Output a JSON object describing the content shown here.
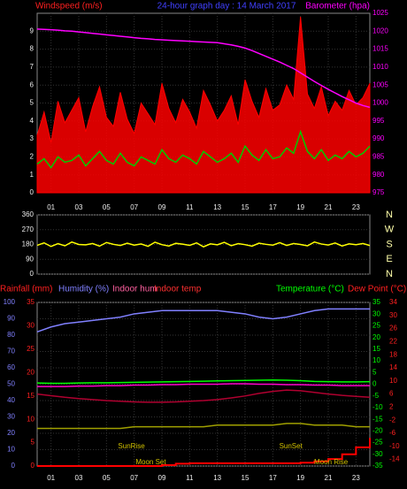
{
  "chart_data": [
    {
      "type": "line",
      "title": "24-hour graph day : 14 March 2017",
      "ylabel": "Windspeed (m/s)",
      "y2label": "Barometer (hpa)",
      "xlim": [
        0,
        24
      ],
      "xticks": [
        {
          "value": 1,
          "label": "01"
        },
        {
          "value": 3,
          "label": "03"
        },
        {
          "value": 5,
          "label": "05"
        },
        {
          "value": 7,
          "label": "07"
        },
        {
          "value": 9,
          "label": "09"
        },
        11,
        13,
        15,
        17,
        19,
        21,
        23
      ],
      "ylim": [
        0,
        10
      ],
      "yticks": [
        0,
        1,
        2,
        3,
        4,
        5,
        6,
        7,
        8,
        9
      ],
      "y2lim": [
        975,
        1025
      ],
      "y2ticks": [
        975,
        980,
        985,
        990,
        995,
        1000,
        1005,
        1010,
        1015,
        1020,
        1025
      ],
      "grid": true,
      "x": [
        0,
        0.5,
        1,
        1.5,
        2,
        2.5,
        3,
        3.5,
        4,
        4.5,
        5,
        5.5,
        6,
        6.5,
        7,
        7.5,
        8,
        8.5,
        9,
        9.5,
        10,
        10.5,
        11,
        11.5,
        12,
        12.5,
        13,
        13.5,
        14,
        14.5,
        15,
        15.5,
        16,
        16.5,
        17,
        17.5,
        18,
        18.5,
        19,
        19.5,
        20,
        20.5,
        21,
        21.5,
        22,
        22.5,
        23,
        23.5,
        24
      ],
      "series": [
        {
          "color": "#ff0000",
          "style": "area",
          "axis": "y",
          "values": [
            3.2,
            4.5,
            2.8,
            5.1,
            3.9,
            4.6,
            5.3,
            3.4,
            4.8,
            5.9,
            4.2,
            3.7,
            5.6,
            4.1,
            3.3,
            5.0,
            4.4,
            3.8,
            6.1,
            4.7,
            3.9,
            5.2,
            4.5,
            3.6,
            5.7,
            4.9,
            4.0,
            4.6,
            5.4,
            3.8,
            6.3,
            5.1,
            4.2,
            5.8,
            4.6,
            4.9,
            6.0,
            5.2,
            9.8,
            5.5,
            4.7,
            5.9,
            4.3,
            5.1,
            4.6,
            5.7,
            4.9,
            5.3,
            6.1
          ]
        },
        {
          "color": "#00cc00",
          "style": "line",
          "axis": "y",
          "values": [
            1.6,
            1.9,
            1.4,
            2.0,
            1.7,
            1.8,
            2.1,
            1.5,
            1.9,
            2.3,
            1.8,
            1.6,
            2.2,
            1.7,
            1.5,
            2.0,
            1.8,
            1.6,
            2.4,
            1.9,
            1.7,
            2.1,
            1.9,
            1.6,
            2.3,
            2.0,
            1.7,
            1.9,
            2.2,
            1.7,
            2.6,
            2.1,
            1.8,
            2.4,
            1.9,
            2.0,
            2.5,
            2.2,
            3.4,
            2.3,
            1.9,
            2.4,
            1.8,
            2.1,
            1.9,
            2.3,
            2.0,
            2.2,
            2.6
          ]
        },
        {
          "color": "#ff00ff",
          "style": "line",
          "axis": "y2",
          "values": [
            1020.6,
            1020.5,
            1020.4,
            1020.3,
            1020.1,
            1020.0,
            1019.8,
            1019.6,
            1019.4,
            1019.2,
            1019.0,
            1018.8,
            1018.6,
            1018.4,
            1018.2,
            1018.0,
            1017.9,
            1017.7,
            1017.6,
            1017.5,
            1017.4,
            1017.3,
            1017.2,
            1017.1,
            1017.0,
            1016.9,
            1016.8,
            1016.5,
            1016.2,
            1015.8,
            1015.3,
            1014.6,
            1013.8,
            1013.0,
            1012.2,
            1011.4,
            1010.5,
            1009.6,
            1008.4,
            1007.2,
            1006.0,
            1004.9,
            1003.8,
            1002.8,
            1001.8,
            1000.9,
            1000.0,
            999.3,
            998.8
          ]
        }
      ]
    },
    {
      "type": "line",
      "xlim": [
        0,
        24
      ],
      "ylim": [
        0,
        360
      ],
      "yticks": [
        0,
        90,
        180,
        270,
        360
      ],
      "grid": true,
      "compass": [
        "N",
        "W",
        "S",
        "E",
        "N"
      ],
      "x": [
        0,
        0.5,
        1,
        1.5,
        2,
        2.5,
        3,
        3.5,
        4,
        4.5,
        5,
        5.5,
        6,
        6.5,
        7,
        7.5,
        8,
        8.5,
        9,
        9.5,
        10,
        10.5,
        11,
        11.5,
        12,
        12.5,
        13,
        13.5,
        14,
        14.5,
        15,
        15.5,
        16,
        16.5,
        17,
        17.5,
        18,
        18.5,
        19,
        19.5,
        20,
        20.5,
        21,
        21.5,
        22,
        22.5,
        23,
        23.5,
        24
      ],
      "series": [
        {
          "color": "#ffff00",
          "style": "line",
          "axis": "y",
          "values": [
            175,
            190,
            168,
            185,
            172,
            195,
            180,
            178,
            186,
            170,
            192,
            181,
            174,
            188,
            176,
            183,
            169,
            194,
            179,
            171,
            187,
            182,
            175,
            190,
            166,
            184,
            178,
            193,
            173,
            185,
            179,
            170,
            188,
            181,
            176,
            191,
            174,
            186,
            180,
            172,
            195,
            183,
            177,
            189,
            171,
            184,
            179,
            186,
            174
          ]
        }
      ]
    },
    {
      "type": "line",
      "ylabel": "Humidity (%)",
      "y3label": "Rainfall (mm)",
      "y2label": "Temperature (°C)",
      "y4label": "Dew Point (°C)",
      "indoor_hum_label": "Indoor hum",
      "indoor_temp_label": "Indoor temp",
      "xlim": [
        0,
        24
      ],
      "xticks": [
        {
          "value": 1,
          "label": "01"
        },
        {
          "value": 3,
          "label": "03"
        },
        {
          "value": 5,
          "label": "05"
        },
        {
          "value": 7,
          "label": "07"
        },
        {
          "value": 9,
          "label": "09"
        },
        11,
        13,
        15,
        17,
        19,
        21,
        23
      ],
      "ylim": [
        0,
        100
      ],
      "yticks": [
        0,
        10,
        20,
        30,
        40,
        50,
        60,
        70,
        80,
        90,
        100
      ],
      "y3lim": [
        0,
        35
      ],
      "y3ticks": [
        0,
        5,
        10,
        15,
        20,
        25,
        30,
        35
      ],
      "y2lim": [
        -35,
        35
      ],
      "y2ticks": [
        -35,
        -30,
        -25,
        -20,
        -15,
        -10,
        -5,
        0,
        5,
        10,
        15,
        20,
        25,
        30,
        35
      ],
      "y4lim": [
        -16,
        34
      ],
      "y4ticks": [
        -14,
        -10,
        -6,
        -2,
        2,
        6,
        10,
        14,
        18,
        22,
        26,
        30,
        34
      ],
      "grid": true,
      "annotations": [
        {
          "text": "SunRise",
          "x": 6.8,
          "row": 1
        },
        {
          "text": "SunSet",
          "x": 18.3,
          "row": 1
        },
        {
          "text": "Moon Set",
          "x": 8.2,
          "row": 2
        },
        {
          "text": "Moon Rise",
          "x": 21.2,
          "row": 2
        }
      ],
      "x": [
        0,
        1,
        2,
        3,
        4,
        5,
        6,
        7,
        8,
        9,
        10,
        11,
        12,
        13,
        14,
        15,
        16,
        17,
        18,
        19,
        20,
        21,
        22,
        23,
        24
      ],
      "series": [
        {
          "color": "#8080ff",
          "style": "line",
          "axis": "y",
          "values": [
            82,
            85,
            87,
            88,
            89,
            90,
            91,
            93,
            94,
            95,
            95,
            95,
            95,
            95,
            94,
            93,
            91,
            90,
            91,
            93,
            95,
            96,
            96,
            96,
            96
          ]
        },
        {
          "color": "#a0a000",
          "style": "line",
          "axis": "y",
          "values": [
            23,
            23,
            23,
            23,
            23,
            23,
            23,
            24,
            24,
            24,
            24,
            24,
            24,
            25,
            25,
            25,
            25,
            25,
            26,
            26,
            25,
            25,
            25,
            24,
            24
          ]
        },
        {
          "color": "#00ff00",
          "style": "line",
          "axis": "y2",
          "values": [
            0.5,
            0.4,
            0.4,
            0.5,
            0.6,
            0.6,
            0.7,
            0.8,
            0.9,
            1.0,
            1.1,
            1.2,
            1.3,
            1.4,
            1.5,
            1.6,
            1.7,
            1.8,
            1.7,
            1.5,
            1.2,
            1.1,
            1.0,
            1.0,
            1.1
          ]
        },
        {
          "color": "#ff00cc",
          "style": "line",
          "axis": "y3",
          "values": [
            17.0,
            17.0,
            17.0,
            17.1,
            17.1,
            17.2,
            17.2,
            17.3,
            17.3,
            17.4,
            17.4,
            17.5,
            17.5,
            17.5,
            17.6,
            17.6,
            17.5,
            17.5,
            17.4,
            17.4,
            17.3,
            17.3,
            17.2,
            17.2,
            17.2
          ]
        },
        {
          "color": "#b00030",
          "style": "line",
          "axis": "y4",
          "values": [
            6.0,
            5.5,
            5.0,
            4.6,
            4.3,
            4.0,
            3.8,
            3.6,
            3.5,
            3.5,
            3.6,
            3.8,
            4.0,
            4.3,
            4.8,
            5.4,
            6.2,
            6.8,
            7.2,
            7.0,
            6.5,
            6.0,
            5.6,
            5.3,
            5.0
          ]
        },
        {
          "color": "#ff0000",
          "style": "step",
          "axis": "y3",
          "values": [
            0,
            0,
            0,
            0,
            0,
            0,
            0,
            0,
            0,
            0.2,
            0.5,
            0.6,
            0.6,
            0.6,
            0.6,
            0.6,
            0.6,
            0.6,
            0.6,
            0.7,
            1.0,
            1.5,
            2.5,
            4.0,
            6.0
          ]
        }
      ]
    }
  ]
}
